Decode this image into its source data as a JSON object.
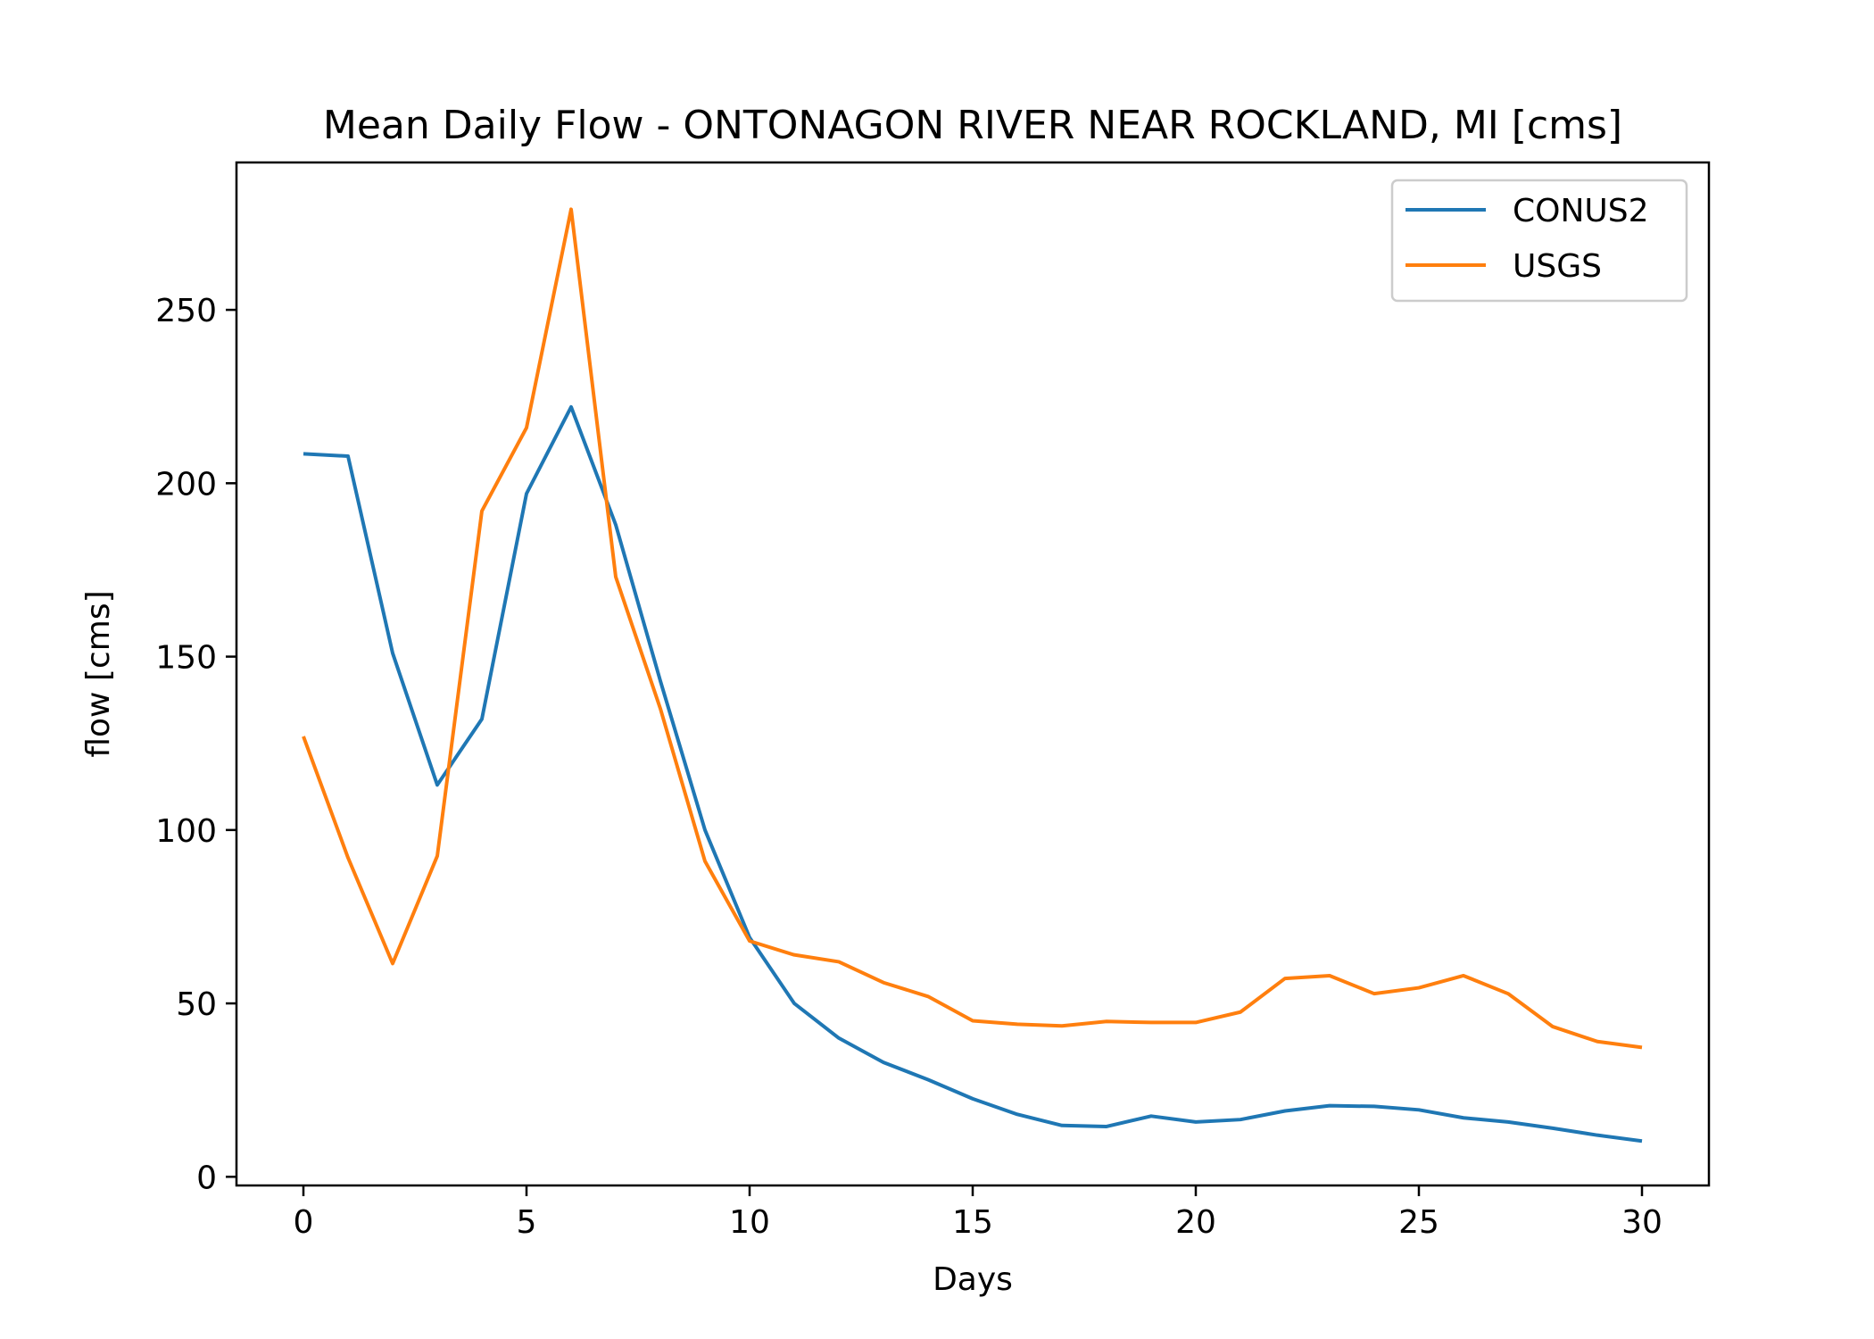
{
  "chart_data": {
    "type": "line",
    "title": "Mean Daily Flow - ONTONAGON RIVER NEAR ROCKLAND, MI [cms]",
    "xlabel": "Days",
    "ylabel": "flow [cms]",
    "xlim": [
      -1.5,
      31.5
    ],
    "ylim": [
      -2.5,
      292.5
    ],
    "xticks": [
      0,
      5,
      10,
      15,
      20,
      25,
      30
    ],
    "yticks": [
      0,
      50,
      100,
      150,
      200,
      250
    ],
    "grid": false,
    "legend_position": "top-right",
    "x": [
      0,
      1,
      2,
      3,
      4,
      5,
      6,
      7,
      8,
      9,
      10,
      11,
      12,
      13,
      14,
      15,
      16,
      17,
      18,
      19,
      20,
      21,
      22,
      23,
      24,
      25,
      26,
      27,
      28,
      29,
      30
    ],
    "series": [
      {
        "name": "CONUS2",
        "color": "#1f77b4",
        "values": [
          208.5,
          207.8,
          151,
          113,
          132,
          197,
          222,
          188,
          143,
          100,
          69,
          50,
          40,
          33,
          28,
          22.5,
          18,
          14.8,
          14.5,
          17.5,
          15.8,
          16.5,
          19,
          20.5,
          20.3,
          19.3,
          17,
          15.8,
          14,
          12,
          10.3
        ]
      },
      {
        "name": "USGS",
        "color": "#ff7f0e",
        "values": [
          127,
          92,
          61.5,
          92.5,
          192,
          216,
          279,
          173,
          135,
          91,
          68,
          64,
          62,
          56,
          52,
          45,
          44,
          43.5,
          44.8,
          44.5,
          44.5,
          47.5,
          57.2,
          58,
          52.8,
          54.5,
          58,
          52.8,
          43.3,
          39,
          37.3
        ]
      }
    ]
  }
}
